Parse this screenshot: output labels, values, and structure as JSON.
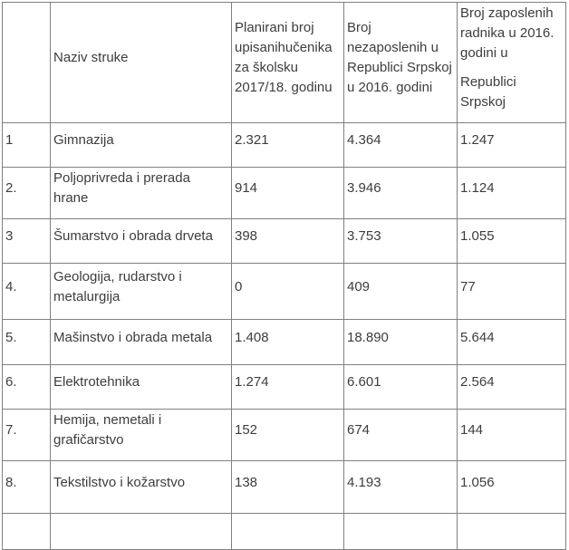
{
  "table": {
    "border_color": "#808080",
    "text_color": "#3d3d3d",
    "headers": {
      "num": "",
      "naziv": "Naziv struke",
      "planirani": "Planirani broj upisanihučenika za školsku 2017/18. godinu",
      "nezaposleni": "Broj nezaposlenih u Republici Srpskoj u 2016. godini",
      "zaposleni_line1": "Broj zaposlenih radnika u 2016. godini u",
      "zaposleni_line2": "Republici Srpskoj"
    },
    "rows": [
      {
        "num": "1",
        "naziv": "Gimnazija",
        "planirani": "2.321",
        "nezaposleni": "4.364",
        "zaposleni": "1.247"
      },
      {
        "num": "2.",
        "naziv": "Poljoprivreda i prerada hrane",
        "planirani": "914",
        "nezaposleni": "3.946",
        "zaposleni": "1.124"
      },
      {
        "num": "3",
        "naziv": "Šumarstvo i obrada drveta",
        "planirani": "398",
        "nezaposleni": "3.753",
        "zaposleni": "1.055"
      },
      {
        "num": "4.",
        "naziv": "Geologija, rudarstvo i metalurgija",
        "planirani": "0",
        "nezaposleni": "409",
        "zaposleni": "77"
      },
      {
        "num": "5.",
        "naziv": "Mašinstvo i obrada metala",
        "planirani": "1.408",
        "nezaposleni": "18.890",
        "zaposleni": "5.644"
      },
      {
        "num": "6.",
        "naziv": "Elektrotehnika",
        "planirani": "1.274",
        "nezaposleni": "6.601",
        "zaposleni": "2.564"
      },
      {
        "num": "7.",
        "naziv": "Hemija, nemetali i grafičarstvo",
        "planirani": "152",
        "nezaposleni": "674",
        "zaposleni": "144"
      },
      {
        "num": "8.",
        "naziv": "Tekstilstvo i kožarstvo",
        "planirani": "138",
        "nezaposleni": "4.193",
        "zaposleni": "1.056"
      }
    ]
  }
}
